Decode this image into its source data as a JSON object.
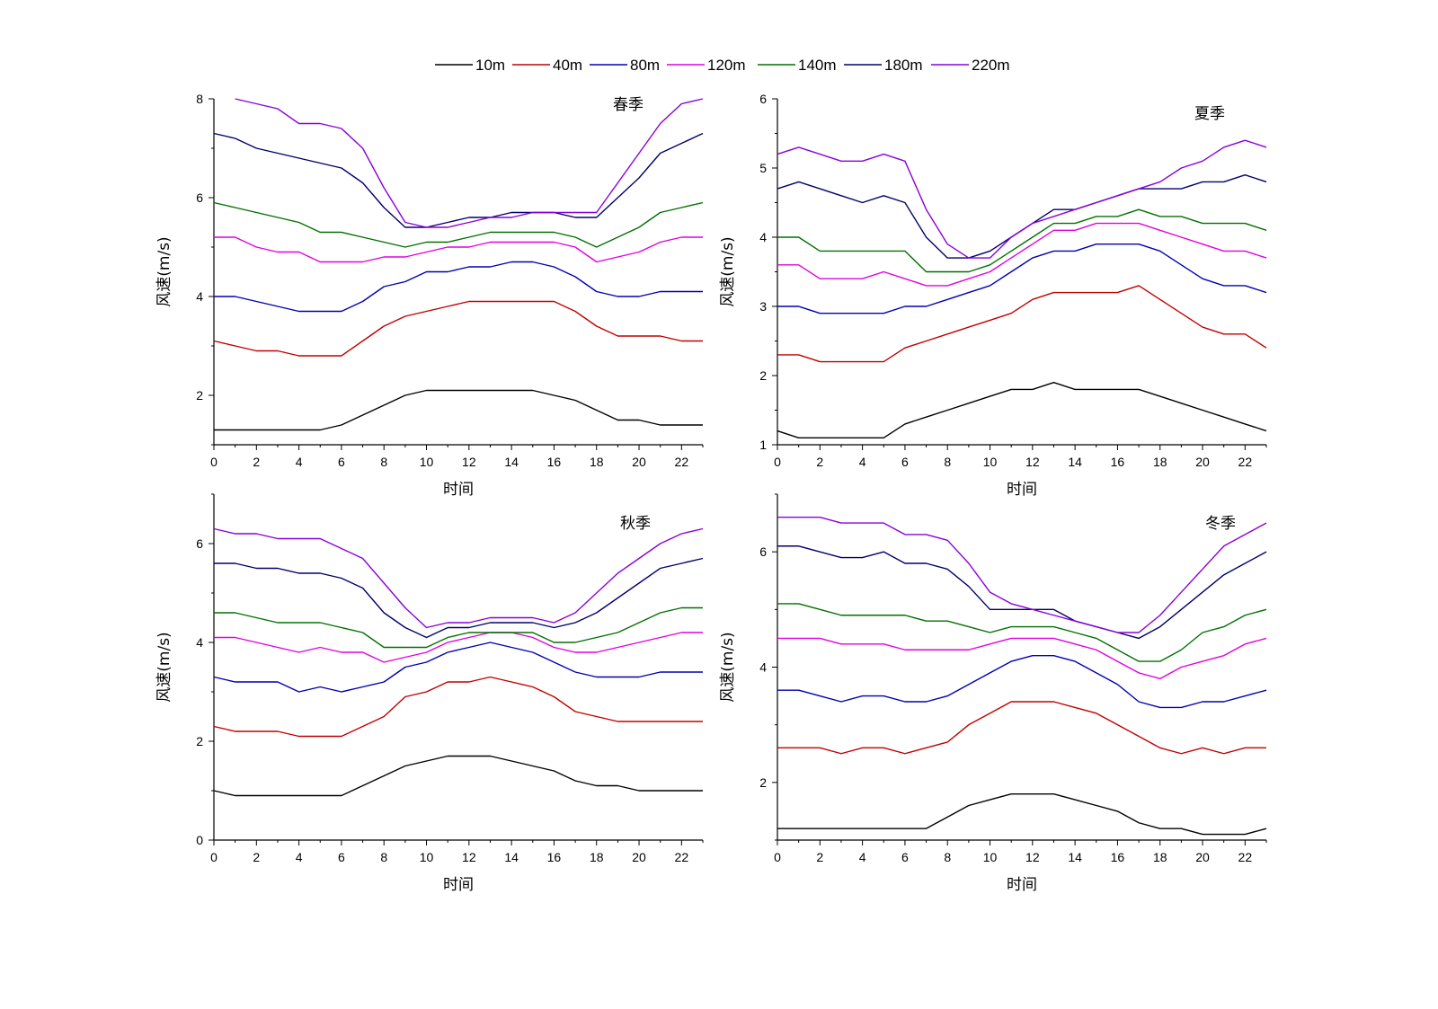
{
  "chart_data": [
    {
      "type": "line",
      "title": "春季",
      "xlabel": "时间",
      "ylabel": "风速(m/s)",
      "xlim": [
        0,
        23
      ],
      "ylim": [
        1,
        8
      ],
      "yticks": [
        2,
        4,
        6,
        8
      ],
      "xticks": [
        0,
        2,
        4,
        6,
        8,
        10,
        12,
        14,
        16,
        18,
        20,
        22
      ],
      "x": [
        0,
        1,
        2,
        3,
        4,
        5,
        6,
        7,
        8,
        9,
        10,
        11,
        12,
        13,
        14,
        15,
        16,
        17,
        18,
        19,
        20,
        21,
        22,
        23
      ],
      "series": [
        {
          "name": "10m",
          "color": "#000000",
          "values": [
            1.3,
            1.3,
            1.3,
            1.3,
            1.3,
            1.3,
            1.4,
            1.6,
            1.8,
            2.0,
            2.1,
            2.1,
            2.1,
            2.1,
            2.1,
            2.1,
            2.0,
            1.9,
            1.7,
            1.5,
            1.5,
            1.4,
            1.4,
            1.4
          ]
        },
        {
          "name": "40m",
          "color": "#c00000",
          "values": [
            3.1,
            3.0,
            2.9,
            2.9,
            2.8,
            2.8,
            2.8,
            3.1,
            3.4,
            3.6,
            3.7,
            3.8,
            3.9,
            3.9,
            3.9,
            3.9,
            3.9,
            3.7,
            3.4,
            3.2,
            3.2,
            3.2,
            3.1,
            3.1
          ]
        },
        {
          "name": "80m",
          "color": "#0000b0",
          "values": [
            4.0,
            4.0,
            3.9,
            3.8,
            3.7,
            3.7,
            3.7,
            3.9,
            4.2,
            4.3,
            4.5,
            4.5,
            4.6,
            4.6,
            4.7,
            4.7,
            4.6,
            4.4,
            4.1,
            4.0,
            4.0,
            4.1,
            4.1,
            4.1
          ]
        },
        {
          "name": "120m",
          "color": "#e000e0",
          "values": [
            5.2,
            5.2,
            5.0,
            4.9,
            4.9,
            4.7,
            4.7,
            4.7,
            4.8,
            4.8,
            4.9,
            5.0,
            5.0,
            5.1,
            5.1,
            5.1,
            5.1,
            5.0,
            4.7,
            4.8,
            4.9,
            5.1,
            5.2,
            5.2
          ]
        },
        {
          "name": "140m",
          "color": "#007000",
          "values": [
            5.9,
            5.8,
            5.7,
            5.6,
            5.5,
            5.3,
            5.3,
            5.2,
            5.1,
            5.0,
            5.1,
            5.1,
            5.2,
            5.3,
            5.3,
            5.3,
            5.3,
            5.2,
            5.0,
            5.2,
            5.4,
            5.7,
            5.8,
            5.9
          ]
        },
        {
          "name": "180m",
          "color": "#00006a",
          "values": [
            7.3,
            7.2,
            7.0,
            6.9,
            6.8,
            6.7,
            6.6,
            6.3,
            5.8,
            5.4,
            5.4,
            5.5,
            5.6,
            5.6,
            5.7,
            5.7,
            5.7,
            5.6,
            5.6,
            6.0,
            6.4,
            6.9,
            7.1,
            7.3
          ]
        },
        {
          "name": "220m",
          "color": "#8a00d8",
          "values": [
            null,
            8.0,
            7.9,
            7.8,
            7.5,
            7.5,
            7.4,
            7.0,
            6.2,
            5.5,
            5.4,
            5.4,
            5.5,
            5.6,
            5.6,
            5.7,
            5.7,
            5.7,
            5.7,
            6.3,
            6.9,
            7.5,
            7.9,
            8.0
          ]
        }
      ]
    },
    {
      "type": "line",
      "title": "夏季",
      "xlabel": "时间",
      "ylabel": "风速(m/s)",
      "xlim": [
        0,
        23
      ],
      "ylim": [
        1,
        6
      ],
      "yticks": [
        1,
        2,
        3,
        4,
        5,
        6
      ],
      "xticks": [
        0,
        2,
        4,
        6,
        8,
        10,
        12,
        14,
        16,
        18,
        20,
        22
      ],
      "x": [
        0,
        1,
        2,
        3,
        4,
        5,
        6,
        7,
        8,
        9,
        10,
        11,
        12,
        13,
        14,
        15,
        16,
        17,
        18,
        19,
        20,
        21,
        22,
        23
      ],
      "series": [
        {
          "name": "10m",
          "color": "#000000",
          "values": [
            1.2,
            1.1,
            1.1,
            1.1,
            1.1,
            1.1,
            1.3,
            1.4,
            1.5,
            1.6,
            1.7,
            1.8,
            1.8,
            1.9,
            1.8,
            1.8,
            1.8,
            1.8,
            1.7,
            1.6,
            1.5,
            1.4,
            1.3,
            1.2
          ]
        },
        {
          "name": "40m",
          "color": "#c00000",
          "values": [
            2.3,
            2.3,
            2.2,
            2.2,
            2.2,
            2.2,
            2.4,
            2.5,
            2.6,
            2.7,
            2.8,
            2.9,
            3.1,
            3.2,
            3.2,
            3.2,
            3.2,
            3.3,
            3.1,
            2.9,
            2.7,
            2.6,
            2.6,
            2.4
          ]
        },
        {
          "name": "80m",
          "color": "#0000b0",
          "values": [
            3.0,
            3.0,
            2.9,
            2.9,
            2.9,
            2.9,
            3.0,
            3.0,
            3.1,
            3.2,
            3.3,
            3.5,
            3.7,
            3.8,
            3.8,
            3.9,
            3.9,
            3.9,
            3.8,
            3.6,
            3.4,
            3.3,
            3.3,
            3.2
          ]
        },
        {
          "name": "120m",
          "color": "#e000e0",
          "values": [
            3.6,
            3.6,
            3.4,
            3.4,
            3.4,
            3.5,
            3.4,
            3.3,
            3.3,
            3.4,
            3.5,
            3.7,
            3.9,
            4.1,
            4.1,
            4.2,
            4.2,
            4.2,
            4.1,
            4.0,
            3.9,
            3.8,
            3.8,
            3.7
          ]
        },
        {
          "name": "140m",
          "color": "#007000",
          "values": [
            4.0,
            4.0,
            3.8,
            3.8,
            3.8,
            3.8,
            3.8,
            3.5,
            3.5,
            3.5,
            3.6,
            3.8,
            4.0,
            4.2,
            4.2,
            4.3,
            4.3,
            4.4,
            4.3,
            4.3,
            4.2,
            4.2,
            4.2,
            4.1
          ]
        },
        {
          "name": "180m",
          "color": "#00006a",
          "values": [
            4.7,
            4.8,
            4.7,
            4.6,
            4.5,
            4.6,
            4.5,
            4.0,
            3.7,
            3.7,
            3.8,
            4.0,
            4.2,
            4.4,
            4.4,
            4.5,
            4.6,
            4.7,
            4.7,
            4.7,
            4.8,
            4.8,
            4.9,
            4.8
          ]
        },
        {
          "name": "220m",
          "color": "#8a00d8",
          "values": [
            5.2,
            5.3,
            5.2,
            5.1,
            5.1,
            5.2,
            5.1,
            4.4,
            3.9,
            3.7,
            3.7,
            4.0,
            4.2,
            4.3,
            4.4,
            4.5,
            4.6,
            4.7,
            4.8,
            5.0,
            5.1,
            5.3,
            5.4,
            5.3
          ]
        }
      ]
    },
    {
      "type": "line",
      "title": "秋季",
      "xlabel": "时间",
      "ylabel": "风速(m/s)",
      "xlim": [
        0,
        23
      ],
      "ylim": [
        0,
        7
      ],
      "yticks": [
        0,
        2,
        4,
        6
      ],
      "xticks": [
        0,
        2,
        4,
        6,
        8,
        10,
        12,
        14,
        16,
        18,
        20,
        22
      ],
      "x": [
        0,
        1,
        2,
        3,
        4,
        5,
        6,
        7,
        8,
        9,
        10,
        11,
        12,
        13,
        14,
        15,
        16,
        17,
        18,
        19,
        20,
        21,
        22,
        23
      ],
      "series": [
        {
          "name": "10m",
          "color": "#000000",
          "values": [
            1.0,
            0.9,
            0.9,
            0.9,
            0.9,
            0.9,
            0.9,
            1.1,
            1.3,
            1.5,
            1.6,
            1.7,
            1.7,
            1.7,
            1.6,
            1.5,
            1.4,
            1.2,
            1.1,
            1.1,
            1.0,
            1.0,
            1.0,
            1.0
          ]
        },
        {
          "name": "40m",
          "color": "#c00000",
          "values": [
            2.3,
            2.2,
            2.2,
            2.2,
            2.1,
            2.1,
            2.1,
            2.3,
            2.5,
            2.9,
            3.0,
            3.2,
            3.2,
            3.3,
            3.2,
            3.1,
            2.9,
            2.6,
            2.5,
            2.4,
            2.4,
            2.4,
            2.4,
            2.4
          ]
        },
        {
          "name": "80m",
          "color": "#0000b0",
          "values": [
            3.3,
            3.2,
            3.2,
            3.2,
            3.0,
            3.1,
            3.0,
            3.1,
            3.2,
            3.5,
            3.6,
            3.8,
            3.9,
            4.0,
            3.9,
            3.8,
            3.6,
            3.4,
            3.3,
            3.3,
            3.3,
            3.4,
            3.4,
            3.4
          ]
        },
        {
          "name": "120m",
          "color": "#e000e0",
          "values": [
            4.1,
            4.1,
            4.0,
            3.9,
            3.8,
            3.9,
            3.8,
            3.8,
            3.6,
            3.7,
            3.8,
            4.0,
            4.1,
            4.2,
            4.2,
            4.1,
            3.9,
            3.8,
            3.8,
            3.9,
            4.0,
            4.1,
            4.2,
            4.2
          ]
        },
        {
          "name": "140m",
          "color": "#007000",
          "values": [
            4.6,
            4.6,
            4.5,
            4.4,
            4.4,
            4.4,
            4.3,
            4.2,
            3.9,
            3.9,
            3.9,
            4.1,
            4.2,
            4.2,
            4.2,
            4.2,
            4.0,
            4.0,
            4.1,
            4.2,
            4.4,
            4.6,
            4.7,
            4.7
          ]
        },
        {
          "name": "180m",
          "color": "#00006a",
          "values": [
            5.6,
            5.6,
            5.5,
            5.5,
            5.4,
            5.4,
            5.3,
            5.1,
            4.6,
            4.3,
            4.1,
            4.3,
            4.3,
            4.4,
            4.4,
            4.4,
            4.3,
            4.4,
            4.6,
            4.9,
            5.2,
            5.5,
            5.6,
            5.7
          ]
        },
        {
          "name": "220m",
          "color": "#8a00d8",
          "values": [
            6.3,
            6.2,
            6.2,
            6.1,
            6.1,
            6.1,
            5.9,
            5.7,
            5.2,
            4.7,
            4.3,
            4.4,
            4.4,
            4.5,
            4.5,
            4.5,
            4.4,
            4.6,
            5.0,
            5.4,
            5.7,
            6.0,
            6.2,
            6.3
          ]
        }
      ]
    },
    {
      "type": "line",
      "title": "冬季",
      "xlabel": "时间",
      "ylabel": "风速(m/s)",
      "xlim": [
        0,
        23
      ],
      "ylim": [
        1,
        7
      ],
      "yticks": [
        2,
        4,
        6
      ],
      "xticks": [
        0,
        2,
        4,
        6,
        8,
        10,
        12,
        14,
        16,
        18,
        20,
        22
      ],
      "x": [
        0,
        1,
        2,
        3,
        4,
        5,
        6,
        7,
        8,
        9,
        10,
        11,
        12,
        13,
        14,
        15,
        16,
        17,
        18,
        19,
        20,
        21,
        22,
        23
      ],
      "series": [
        {
          "name": "10m",
          "color": "#000000",
          "values": [
            1.2,
            1.2,
            1.2,
            1.2,
            1.2,
            1.2,
            1.2,
            1.2,
            1.4,
            1.6,
            1.7,
            1.8,
            1.8,
            1.8,
            1.7,
            1.6,
            1.5,
            1.3,
            1.2,
            1.2,
            1.1,
            1.1,
            1.1,
            1.2
          ]
        },
        {
          "name": "40m",
          "color": "#c00000",
          "values": [
            2.6,
            2.6,
            2.6,
            2.5,
            2.6,
            2.6,
            2.5,
            2.6,
            2.7,
            3.0,
            3.2,
            3.4,
            3.4,
            3.4,
            3.3,
            3.2,
            3.0,
            2.8,
            2.6,
            2.5,
            2.6,
            2.5,
            2.6,
            2.6
          ]
        },
        {
          "name": "80m",
          "color": "#0000b0",
          "values": [
            3.6,
            3.6,
            3.5,
            3.4,
            3.5,
            3.5,
            3.4,
            3.4,
            3.5,
            3.7,
            3.9,
            4.1,
            4.2,
            4.2,
            4.1,
            3.9,
            3.7,
            3.4,
            3.3,
            3.3,
            3.4,
            3.4,
            3.5,
            3.6
          ]
        },
        {
          "name": "120m",
          "color": "#e000e0",
          "values": [
            4.5,
            4.5,
            4.5,
            4.4,
            4.4,
            4.4,
            4.3,
            4.3,
            4.3,
            4.3,
            4.4,
            4.5,
            4.5,
            4.5,
            4.4,
            4.3,
            4.1,
            3.9,
            3.8,
            4.0,
            4.1,
            4.2,
            4.4,
            4.5
          ]
        },
        {
          "name": "140m",
          "color": "#007000",
          "values": [
            5.1,
            5.1,
            5.0,
            4.9,
            4.9,
            4.9,
            4.9,
            4.8,
            4.8,
            4.7,
            4.6,
            4.7,
            4.7,
            4.7,
            4.6,
            4.5,
            4.3,
            4.1,
            4.1,
            4.3,
            4.6,
            4.7,
            4.9,
            5.0
          ]
        },
        {
          "name": "180m",
          "color": "#00006a",
          "values": [
            6.1,
            6.1,
            6.0,
            5.9,
            5.9,
            6.0,
            5.8,
            5.8,
            5.7,
            5.4,
            5.0,
            5.0,
            5.0,
            5.0,
            4.8,
            4.7,
            4.6,
            4.5,
            4.7,
            5.0,
            5.3,
            5.6,
            5.8,
            6.0
          ]
        },
        {
          "name": "220m",
          "color": "#8a00d8",
          "values": [
            6.6,
            6.6,
            6.6,
            6.5,
            6.5,
            6.5,
            6.3,
            6.3,
            6.2,
            5.8,
            5.3,
            5.1,
            5.0,
            4.9,
            4.8,
            4.7,
            4.6,
            4.6,
            4.9,
            5.3,
            5.7,
            6.1,
            6.3,
            6.5
          ]
        }
      ]
    }
  ],
  "legend": {
    "placement": "top-center",
    "items": [
      {
        "label": "10m",
        "color": "#000000"
      },
      {
        "label": "40m",
        "color": "#c00000"
      },
      {
        "label": "80m",
        "color": "#0000b0"
      },
      {
        "label": "120m",
        "color": "#e000e0"
      },
      {
        "label": "140m",
        "color": "#007000"
      },
      {
        "label": "180m",
        "color": "#00006a"
      },
      {
        "label": "220m",
        "color": "#8a00d8"
      }
    ]
  }
}
